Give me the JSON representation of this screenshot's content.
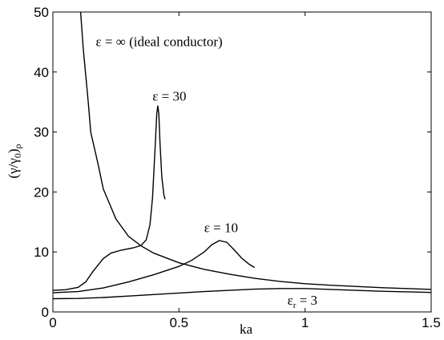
{
  "chart_data": {
    "type": "line",
    "xlabel": "ka",
    "ylabel": "(γ/γ",
    "ylabel_sub_0": "0",
    "ylabel_tail": ")",
    "ylabel_sub_rho": "ρ",
    "xlim": [
      0,
      1.5
    ],
    "ylim": [
      0,
      50
    ],
    "x_ticks": [
      0,
      0.5,
      1,
      1.5
    ],
    "x_tick_labels": [
      "0",
      "0.5",
      "1",
      "1.5"
    ],
    "y_ticks": [
      0,
      10,
      20,
      30,
      40,
      50
    ],
    "y_tick_labels": [
      "0",
      "10",
      "20",
      "30",
      "40",
      "50"
    ],
    "grid": false,
    "series": [
      {
        "name": "ε = ∞ (ideal conductor)",
        "points": [
          [
            0.11,
            50
          ],
          [
            0.12,
            44
          ],
          [
            0.14,
            35
          ],
          [
            0.15,
            30
          ],
          [
            0.18,
            24.5
          ],
          [
            0.2,
            20.5
          ],
          [
            0.25,
            15.5
          ],
          [
            0.3,
            12.6
          ],
          [
            0.35,
            11
          ],
          [
            0.4,
            9.8
          ],
          [
            0.5,
            8.2
          ],
          [
            0.6,
            7.1
          ],
          [
            0.7,
            6.3
          ],
          [
            0.8,
            5.6
          ],
          [
            0.9,
            5.1
          ],
          [
            1.0,
            4.7
          ],
          [
            1.1,
            4.45
          ],
          [
            1.2,
            4.25
          ],
          [
            1.3,
            4.05
          ],
          [
            1.4,
            3.9
          ],
          [
            1.5,
            3.75
          ]
        ]
      },
      {
        "name": "ε = 30",
        "points": [
          [
            0.0,
            3.6
          ],
          [
            0.05,
            3.7
          ],
          [
            0.1,
            4.1
          ],
          [
            0.13,
            5.0
          ],
          [
            0.16,
            6.8
          ],
          [
            0.2,
            8.9
          ],
          [
            0.23,
            9.8
          ],
          [
            0.27,
            10.3
          ],
          [
            0.32,
            10.7
          ],
          [
            0.35,
            11.1
          ],
          [
            0.37,
            12.0
          ],
          [
            0.385,
            14.5
          ],
          [
            0.395,
            19.0
          ],
          [
            0.405,
            27.0
          ],
          [
            0.412,
            33.0
          ],
          [
            0.416,
            34.4
          ],
          [
            0.42,
            33.0
          ],
          [
            0.425,
            28.0
          ],
          [
            0.432,
            22.5
          ],
          [
            0.44,
            19.5
          ],
          [
            0.445,
            18.8
          ]
        ]
      },
      {
        "name": "ε = 10",
        "points": [
          [
            0.0,
            3.2
          ],
          [
            0.1,
            3.4
          ],
          [
            0.2,
            4.0
          ],
          [
            0.3,
            5.0
          ],
          [
            0.4,
            6.2
          ],
          [
            0.5,
            7.6
          ],
          [
            0.55,
            8.6
          ],
          [
            0.6,
            10.0
          ],
          [
            0.63,
            11.2
          ],
          [
            0.66,
            11.9
          ],
          [
            0.69,
            11.6
          ],
          [
            0.72,
            10.3
          ],
          [
            0.75,
            8.9
          ],
          [
            0.78,
            7.9
          ],
          [
            0.8,
            7.4
          ]
        ]
      },
      {
        "name": "ε = 3",
        "points": [
          [
            0.0,
            2.2
          ],
          [
            0.1,
            2.25
          ],
          [
            0.2,
            2.4
          ],
          [
            0.3,
            2.65
          ],
          [
            0.4,
            2.9
          ],
          [
            0.5,
            3.15
          ],
          [
            0.6,
            3.4
          ],
          [
            0.7,
            3.6
          ],
          [
            0.8,
            3.8
          ],
          [
            0.9,
            3.9
          ],
          [
            1.0,
            3.9
          ],
          [
            1.1,
            3.75
          ],
          [
            1.2,
            3.6
          ],
          [
            1.3,
            3.45
          ],
          [
            1.4,
            3.35
          ],
          [
            1.5,
            3.25
          ]
        ]
      }
    ],
    "annotations": [
      {
        "id": "inf",
        "text": "ε = ∞ (ideal conductor)",
        "x": 0.17,
        "y": 44.3
      },
      {
        "id": "e30",
        "text": "ε = 30",
        "x": 0.395,
        "y": 35.2
      },
      {
        "id": "e10",
        "text": "ε = 10",
        "x": 0.6,
        "y": 13.3
      },
      {
        "id": "e3",
        "text": "ε",
        "sub": "r",
        "tail": "= 3",
        "x": 0.93,
        "y": 1.2
      }
    ]
  }
}
